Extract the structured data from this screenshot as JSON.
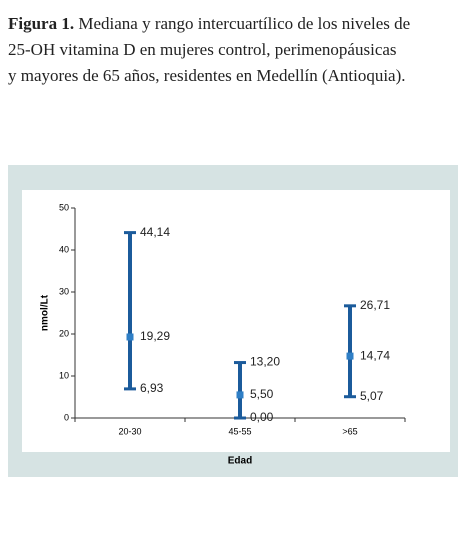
{
  "caption": {
    "label": "Figura 1.",
    "lines": [
      "Mediana y rango intercuartílico de los niveles de",
      "25-OH vitamina D en mujeres control, perimenopáusicas",
      "y mayores de 65 años, residentes en Medellín (Antioquia)."
    ]
  },
  "chart_data": {
    "type": "range",
    "x_label": "Edad",
    "y_label": "nmol/Lt",
    "categories": [
      "20-30",
      "45-55",
      ">65"
    ],
    "q1": {
      "values": [
        6.93,
        0.0,
        5.07
      ],
      "value_labels": [
        "6,93",
        "0,00",
        "5,07"
      ]
    },
    "median": {
      "values": [
        19.29,
        5.5,
        14.74
      ],
      "value_labels": [
        "19,29",
        "5,50",
        "14,74"
      ]
    },
    "q3": {
      "values": [
        44.14,
        13.2,
        26.71
      ],
      "value_labels": [
        "44,14",
        "13,20",
        "26,71"
      ]
    },
    "color": "#1b5b9b",
    "marker_color": "#2f7fc6",
    "ylim": [
      0,
      50
    ],
    "yticks": [
      0,
      10,
      20,
      30,
      40,
      50
    ]
  }
}
